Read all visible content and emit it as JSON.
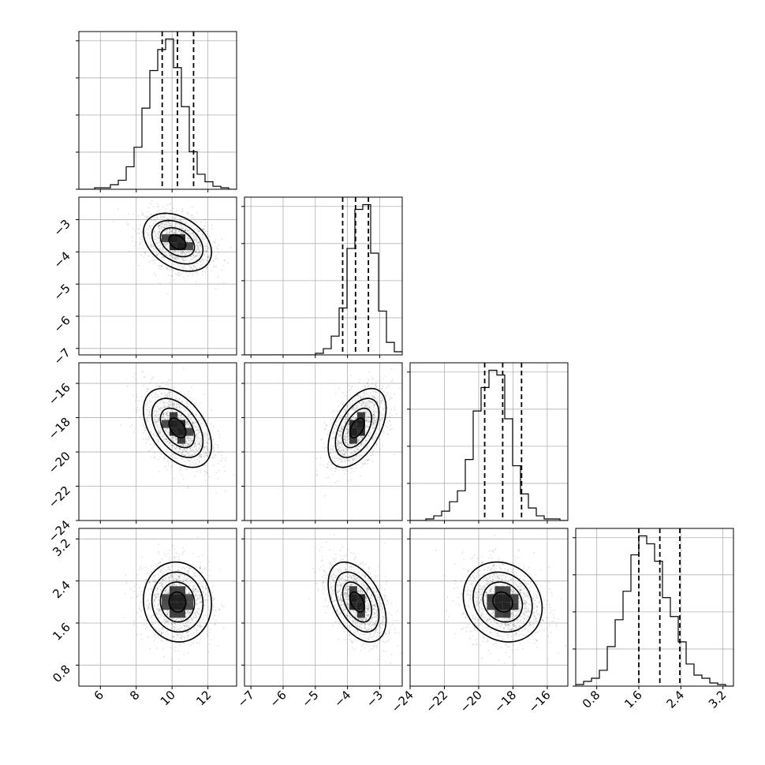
{
  "chart_data": {
    "type": "corner",
    "grid": true,
    "params": [
      {
        "range": [
          4.8,
          13.6
        ],
        "ticks": [
          6,
          8,
          10,
          12
        ],
        "tick_labels": [
          "6",
          "8",
          "10",
          "12"
        ],
        "mean": 10.3,
        "sd": 0.95,
        "quantiles": [
          9.45,
          10.3,
          11.2
        ],
        "hist_values": [
          0,
          0,
          0.01,
          0.01,
          0.03,
          0.06,
          0.15,
          0.28,
          0.54,
          0.79,
          0.93,
          1.0,
          0.81,
          0.55,
          0.25,
          0.1,
          0.05,
          0.02,
          0.01,
          0
        ]
      },
      {
        "range": [
          -7.2,
          -2.3
        ],
        "ticks": [
          -7,
          -6,
          -5,
          -4,
          -3
        ],
        "tick_labels": [
          "−7",
          "−6",
          "−5",
          "−4",
          "−3"
        ],
        "mean": -3.7,
        "sd": 0.45,
        "quantiles": [
          -4.15,
          -3.75,
          -3.35
        ],
        "hist_values": [
          0,
          0,
          0,
          0,
          0,
          0,
          0,
          0,
          0,
          0.01,
          0.04,
          0.12,
          0.3,
          0.68,
          0.93,
          0.96,
          0.65,
          0.28,
          0.08,
          0.02
        ]
      },
      {
        "range": [
          -24,
          -14.8
        ],
        "ticks": [
          -24,
          -22,
          -20,
          -18,
          -16
        ],
        "tick_labels": [
          "−24",
          "−22",
          "−20",
          "−18",
          "−16"
        ],
        "mean": -18.6,
        "sd": 1.15,
        "quantiles": [
          -19.65,
          -18.6,
          -17.5
        ],
        "hist_values": [
          0,
          0,
          0.01,
          0.03,
          0.06,
          0.12,
          0.19,
          0.39,
          0.7,
          0.85,
          0.96,
          0.93,
          0.65,
          0.35,
          0.17,
          0.08,
          0.03,
          0.01,
          0.01,
          0
        ]
      },
      {
        "range": [
          0.4,
          3.4
        ],
        "ticks": [
          0.8,
          1.6,
          2.4,
          3.2
        ],
        "tick_labels": [
          "0.8",
          "1.6",
          "2.4",
          "3.2"
        ],
        "mean": 2.0,
        "sd": 0.38,
        "quantiles": [
          1.6,
          2.0,
          2.38
        ],
        "hist_values": [
          0.01,
          0.03,
          0.05,
          0.1,
          0.25,
          0.42,
          0.6,
          0.83,
          0.95,
          0.9,
          0.79,
          0.56,
          0.44,
          0.28,
          0.14,
          0.07,
          0.05,
          0.02,
          0.01,
          0
        ]
      }
    ],
    "correlations": {
      "1-0": -0.35,
      "2-0": -0.45,
      "2-1": 0.5,
      "3-0": -0.05,
      "3-1": -0.45,
      "3-2": -0.15
    }
  }
}
